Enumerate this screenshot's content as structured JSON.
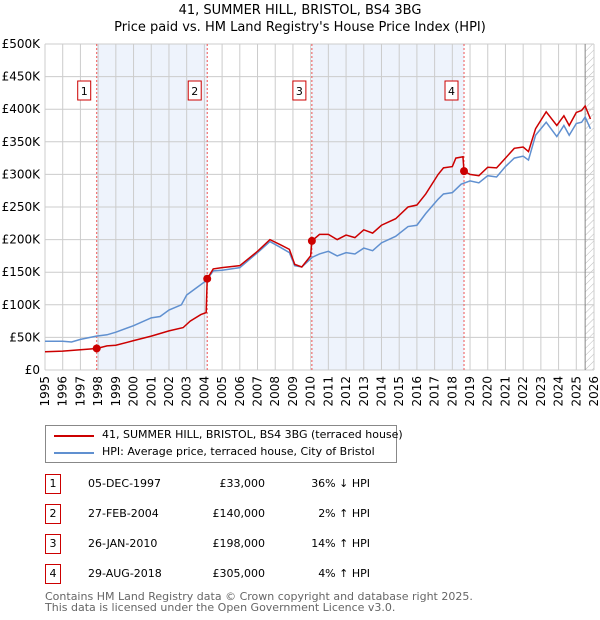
{
  "title": "41, SUMMER HILL, BRISTOL, BS4 3BG",
  "subtitle": "Price paid vs. HM Land Registry's House Price Index (HPI)",
  "colors": {
    "property": "#cc0000",
    "hpi": "#6090d0",
    "band": "#eef3fc"
  },
  "chart_data": {
    "type": "line",
    "xlim": [
      1995,
      2026
    ],
    "ylim": [
      0,
      500000
    ],
    "yticks": [
      {
        "v": 0,
        "l": "£0"
      },
      {
        "v": 50000,
        "l": "£50K"
      },
      {
        "v": 100000,
        "l": "£100K"
      },
      {
        "v": 150000,
        "l": "£150K"
      },
      {
        "v": 200000,
        "l": "£200K"
      },
      {
        "v": 250000,
        "l": "£250K"
      },
      {
        "v": 300000,
        "l": "£300K"
      },
      {
        "v": 350000,
        "l": "£350K"
      },
      {
        "v": 400000,
        "l": "£400K"
      },
      {
        "v": 450000,
        "l": "£450K"
      },
      {
        "v": 500000,
        "l": "£500K"
      }
    ],
    "xticks": [
      1995,
      1996,
      1997,
      1998,
      1999,
      2000,
      2001,
      2002,
      2003,
      2004,
      2005,
      2006,
      2007,
      2008,
      2009,
      2010,
      2011,
      2012,
      2013,
      2014,
      2015,
      2016,
      2017,
      2018,
      2019,
      2020,
      2021,
      2022,
      2023,
      2024,
      2025,
      2026
    ],
    "forecast_start": 2025.5,
    "series": [
      {
        "name": "41, SUMMER HILL, BRISTOL, BS4 3BG (terraced house)",
        "color": "#cc0000",
        "points": [
          [
            1995,
            28
          ],
          [
            1996,
            29
          ],
          [
            1997,
            31
          ],
          [
            1997.92,
            33
          ],
          [
            1998.5,
            37
          ],
          [
            1999,
            38
          ],
          [
            2000,
            45
          ],
          [
            2001,
            52
          ],
          [
            2002,
            60
          ],
          [
            2002.8,
            65
          ],
          [
            2003.2,
            75
          ],
          [
            2003.8,
            85
          ],
          [
            2004.1,
            88
          ],
          [
            2004.16,
            140
          ],
          [
            2004.5,
            155
          ],
          [
            2005,
            157
          ],
          [
            2006,
            160
          ],
          [
            2007,
            182
          ],
          [
            2007.7,
            200
          ],
          [
            2008.3,
            192
          ],
          [
            2008.8,
            185
          ],
          [
            2009.1,
            162
          ],
          [
            2009.5,
            158
          ],
          [
            2010,
            175
          ],
          [
            2010.07,
            198
          ],
          [
            2010.5,
            208
          ],
          [
            2011,
            208
          ],
          [
            2011.5,
            200
          ],
          [
            2012,
            207
          ],
          [
            2012.5,
            203
          ],
          [
            2013,
            215
          ],
          [
            2013.5,
            210
          ],
          [
            2014,
            222
          ],
          [
            2014.8,
            232
          ],
          [
            2015.5,
            250
          ],
          [
            2016,
            253
          ],
          [
            2016.5,
            270
          ],
          [
            2017.2,
            300
          ],
          [
            2017.5,
            310
          ],
          [
            2018,
            312
          ],
          [
            2018.2,
            325
          ],
          [
            2018.6,
            327
          ],
          [
            2018.66,
            305
          ],
          [
            2019,
            300
          ],
          [
            2019.5,
            298
          ],
          [
            2020,
            311
          ],
          [
            2020.5,
            310
          ],
          [
            2021,
            325
          ],
          [
            2021.5,
            340
          ],
          [
            2022,
            342
          ],
          [
            2022.3,
            335
          ],
          [
            2022.7,
            370
          ],
          [
            2023.3,
            396
          ],
          [
            2023.9,
            375
          ],
          [
            2024.3,
            390
          ],
          [
            2024.6,
            375
          ],
          [
            2025,
            395
          ],
          [
            2025.3,
            398
          ],
          [
            2025.5,
            405
          ],
          [
            2025.8,
            385
          ]
        ]
      },
      {
        "name": "HPI: Average price, terraced house, City of Bristol",
        "color": "#6090d0",
        "points": [
          [
            1995,
            44
          ],
          [
            1996,
            44
          ],
          [
            1996.5,
            43
          ],
          [
            1997,
            47
          ],
          [
            1997.9,
            52
          ],
          [
            1998.5,
            54
          ],
          [
            1999,
            58
          ],
          [
            2000,
            68
          ],
          [
            2001,
            80
          ],
          [
            2001.5,
            82
          ],
          [
            2002,
            92
          ],
          [
            2002.7,
            100
          ],
          [
            2003,
            115
          ],
          [
            2003.5,
            125
          ],
          [
            2004.1,
            137
          ],
          [
            2004.5,
            152
          ],
          [
            2005,
            153
          ],
          [
            2006,
            157
          ],
          [
            2007,
            180
          ],
          [
            2007.7,
            197
          ],
          [
            2008.3,
            188
          ],
          [
            2008.8,
            180
          ],
          [
            2009.1,
            160
          ],
          [
            2009.5,
            158
          ],
          [
            2010.1,
            173
          ],
          [
            2010.5,
            178
          ],
          [
            2011,
            182
          ],
          [
            2011.5,
            175
          ],
          [
            2012,
            180
          ],
          [
            2012.5,
            178
          ],
          [
            2013,
            187
          ],
          [
            2013.5,
            183
          ],
          [
            2014,
            195
          ],
          [
            2014.8,
            205
          ],
          [
            2015.5,
            220
          ],
          [
            2016,
            222
          ],
          [
            2016.5,
            240
          ],
          [
            2017.2,
            262
          ],
          [
            2017.5,
            270
          ],
          [
            2018,
            272
          ],
          [
            2018.5,
            285
          ],
          [
            2019,
            290
          ],
          [
            2019.5,
            287
          ],
          [
            2020,
            298
          ],
          [
            2020.5,
            296
          ],
          [
            2021,
            312
          ],
          [
            2021.5,
            325
          ],
          [
            2022,
            328
          ],
          [
            2022.3,
            322
          ],
          [
            2022.7,
            360
          ],
          [
            2023.3,
            380
          ],
          [
            2023.9,
            358
          ],
          [
            2024.3,
            375
          ],
          [
            2024.6,
            360
          ],
          [
            2025,
            378
          ],
          [
            2025.3,
            380
          ],
          [
            2025.5,
            388
          ],
          [
            2025.8,
            370
          ]
        ]
      }
    ],
    "sales": [
      {
        "n": "1",
        "x": 1997.92,
        "y": 33000,
        "date": "05-DEC-1997",
        "price": "£33,000",
        "hpi": "36% ↓ HPI"
      },
      {
        "n": "2",
        "x": 2004.16,
        "y": 140000,
        "date": "27-FEB-2004",
        "price": "£140,000",
        "hpi": "2% ↑ HPI"
      },
      {
        "n": "3",
        "x": 2010.07,
        "y": 198000,
        "date": "26-JAN-2010",
        "price": "£198,000",
        "hpi": "14% ↑ HPI"
      },
      {
        "n": "4",
        "x": 2018.66,
        "y": 305000,
        "date": "29-AUG-2018",
        "price": "£305,000",
        "hpi": "4% ↑ HPI"
      }
    ]
  },
  "footer": {
    "line1": "Contains HM Land Registry data © Crown copyright and database right 2025.",
    "line2": "This data is licensed under the Open Government Licence v3.0."
  }
}
